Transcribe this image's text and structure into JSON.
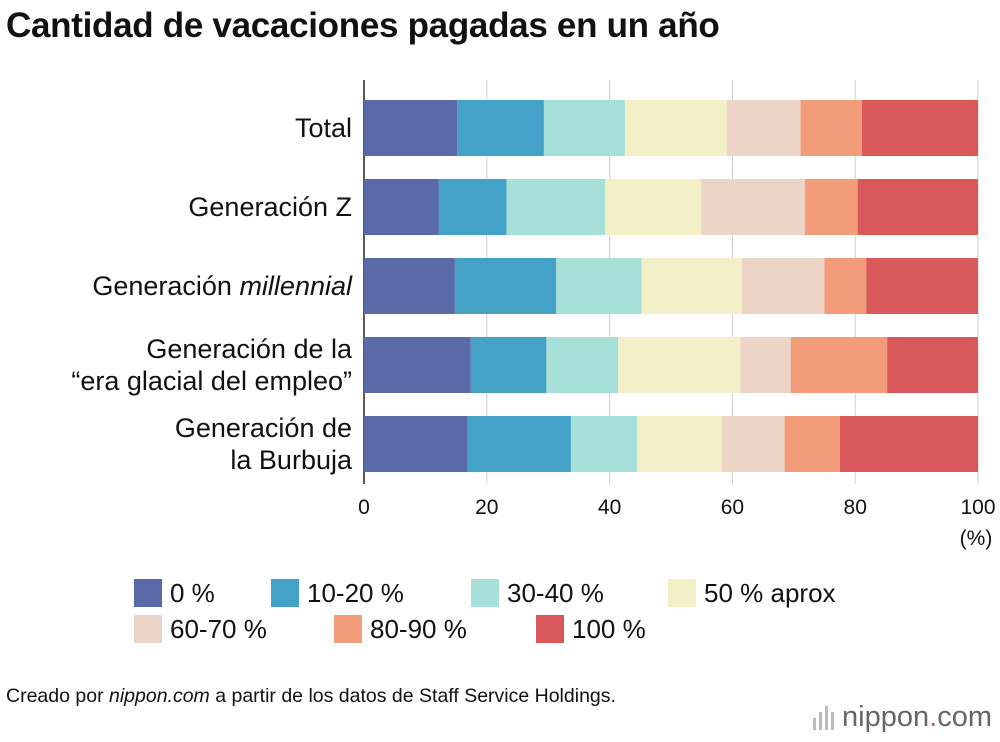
{
  "title": "Cantidad de vacaciones pagadas en un año",
  "chart_data": {
    "type": "bar",
    "orientation": "horizontal",
    "stacked": true,
    "categories": [
      [
        "Total"
      ],
      [
        "Generación Z"
      ],
      [
        "Generación ",
        "millennial"
      ],
      [
        "Generación de la",
        "“era glacial del empleo”"
      ],
      [
        "Generación de",
        "la Burbuja"
      ]
    ],
    "series": [
      {
        "name": "0 %",
        "color": "#5a6aa8",
        "values": [
          15.2,
          12.2,
          14.8,
          17.4,
          16.9
        ]
      },
      {
        "name": "10-20 %",
        "color": "#44a1c7",
        "values": [
          14.1,
          11.0,
          16.5,
          12.3,
          16.8
        ]
      },
      {
        "name": "30-40 %",
        "color": "#a6e0d8",
        "values": [
          13.2,
          16.1,
          13.9,
          11.7,
          10.8
        ]
      },
      {
        "name": "50 % aprox",
        "color": "#f3efc7",
        "values": [
          16.6,
          15.6,
          16.3,
          19.9,
          13.8
        ]
      },
      {
        "name": "60-70 %",
        "color": "#ecd5c6",
        "values": [
          12.0,
          16.9,
          13.5,
          8.2,
          10.2
        ]
      },
      {
        "name": "80-90 %",
        "color": "#f29c7a",
        "values": [
          10.0,
          8.6,
          6.8,
          15.7,
          9.0
        ]
      },
      {
        "name": "100 %",
        "color": "#d95859",
        "values": [
          18.9,
          19.6,
          18.2,
          14.8,
          22.5
        ]
      }
    ],
    "xlim": [
      0,
      100
    ],
    "xticks": [
      0,
      20,
      40,
      60,
      80,
      100
    ],
    "xunit": "(%)",
    "grid": true,
    "legend_position": "bottom"
  },
  "source": {
    "prefix": "Creado por ",
    "site": "nippon.com",
    "suffix": " a partir de los datos de Staff Service Holdings."
  },
  "brand": {
    "name": "nippon",
    "dot": ".",
    "tld": "com"
  }
}
